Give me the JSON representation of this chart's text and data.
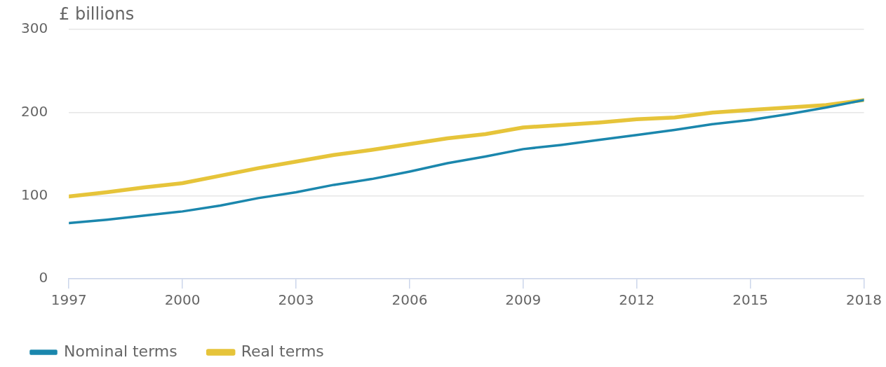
{
  "chart_data": {
    "type": "line",
    "ylabel": "£ billions",
    "x": [
      1997,
      1998,
      1999,
      2000,
      2001,
      2002,
      2003,
      2004,
      2005,
      2006,
      2007,
      2008,
      2009,
      2010,
      2011,
      2012,
      2013,
      2014,
      2015,
      2016,
      2017,
      2018
    ],
    "series": [
      {
        "name": "Nominal terms",
        "color": "#1b87ad",
        "values": [
          67,
          71,
          76,
          81,
          88,
          97,
          104,
          113,
          120,
          129,
          139,
          147,
          156,
          161,
          167,
          173,
          179,
          186,
          191,
          198,
          206,
          215
        ]
      },
      {
        "name": "Real terms",
        "color": "#e6c43a",
        "values": [
          99,
          104,
          110,
          115,
          124,
          133,
          141,
          149,
          155,
          162,
          169,
          174,
          182,
          185,
          188,
          192,
          194,
          200,
          203,
          206,
          209,
          215
        ]
      }
    ],
    "xlim": [
      1997,
      2018
    ],
    "xticks": [
      1997,
      2000,
      2003,
      2006,
      2009,
      2012,
      2015,
      2018
    ],
    "ylim": [
      0,
      300
    ],
    "yticks": [
      0,
      100,
      200,
      300
    ],
    "grid": "y",
    "legend": "bottom left",
    "marker": "none",
    "line_style": "solid"
  }
}
